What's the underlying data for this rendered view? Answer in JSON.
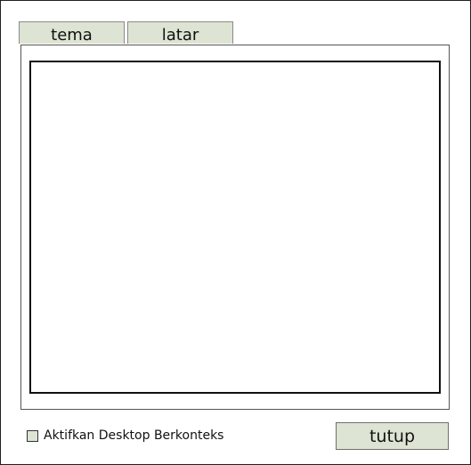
{
  "tabs": [
    {
      "label": "tema"
    },
    {
      "label": "latar"
    }
  ],
  "checkbox": {
    "label": "Aktifkan Desktop Berkonteks",
    "checked": false
  },
  "actions": {
    "close_label": "tutup"
  },
  "colors": {
    "control_fill": "#dde4d3",
    "border": "#111111"
  }
}
